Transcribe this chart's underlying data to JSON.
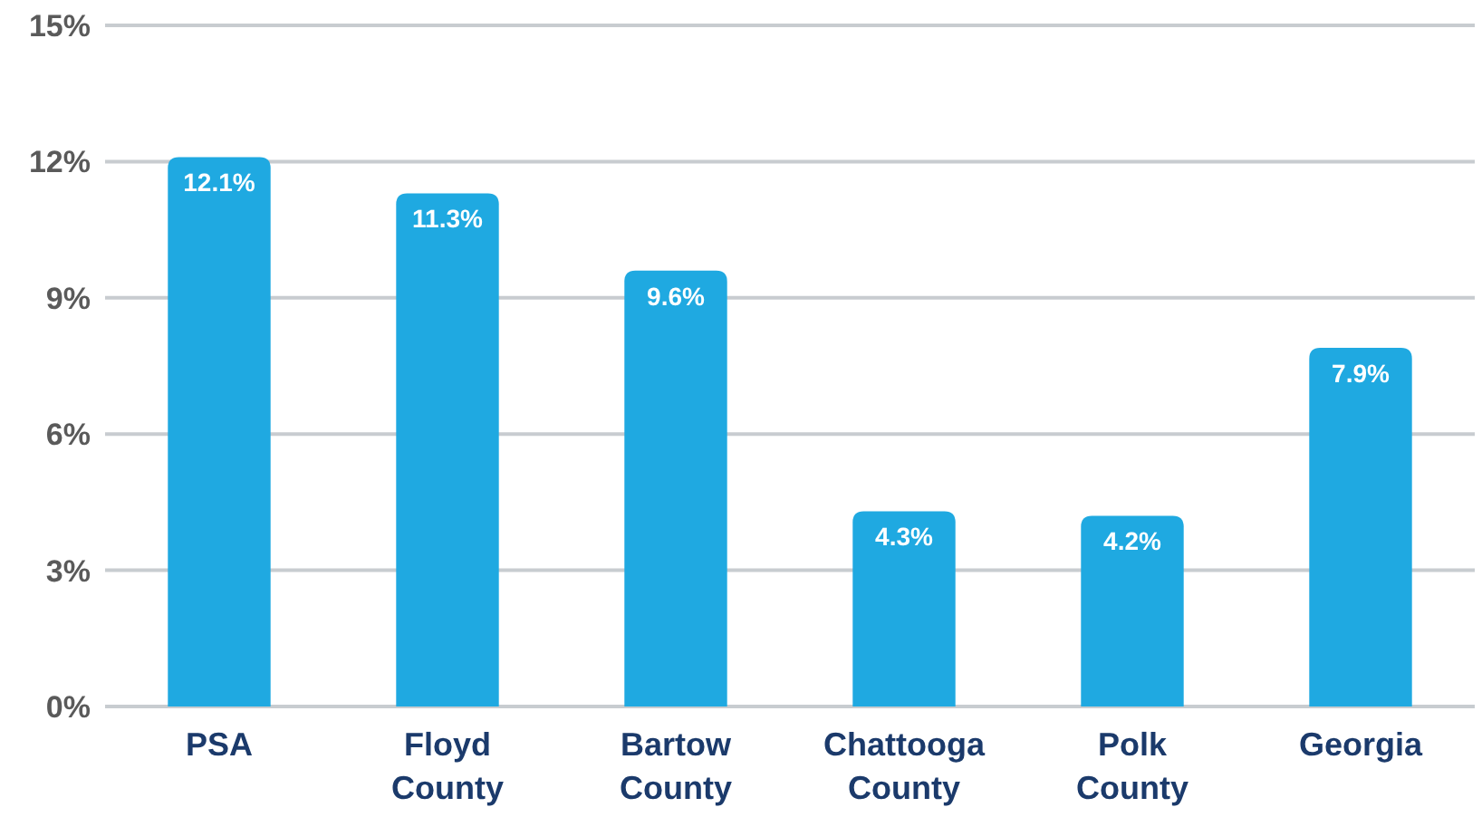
{
  "chart_data": {
    "type": "bar",
    "categories": [
      "PSA",
      "Floyd County",
      "Bartow County",
      "Chattooga County",
      "Polk County",
      "Georgia"
    ],
    "values": [
      12.1,
      11.3,
      9.6,
      4.3,
      4.2,
      7.9
    ],
    "value_labels": [
      "12.1%",
      "11.3%",
      "9.6%",
      "4.3%",
      "4.2%",
      "7.9%"
    ],
    "color": "#1fa9e1",
    "ylim": [
      0,
      15
    ],
    "yticks": [
      {
        "value": 0,
        "label": "0%"
      },
      {
        "value": 3,
        "label": "3%"
      },
      {
        "value": 6,
        "label": "6%"
      },
      {
        "value": 9,
        "label": "9%"
      },
      {
        "value": 12,
        "label": "12%"
      },
      {
        "value": 15,
        "label": "15%"
      }
    ],
    "grid": "y"
  }
}
